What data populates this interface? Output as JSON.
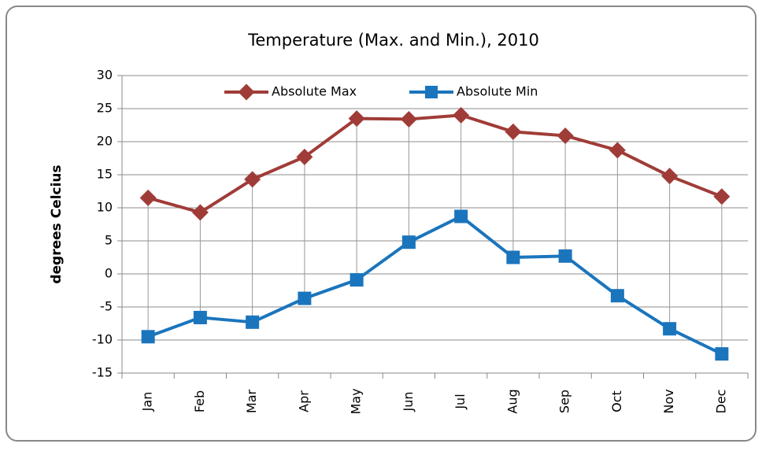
{
  "chart_data": {
    "type": "line",
    "title": "Temperature (Max. and Min.), 2010",
    "y_label": "degrees Celcius",
    "categories": [
      "Jan",
      "Feb",
      "Mar",
      "Apr",
      "May",
      "Jun",
      "Jul",
      "Aug",
      "Sep",
      "Oct",
      "Nov",
      "Dec"
    ],
    "series": [
      {
        "name": "Absolute Max",
        "color": "#a03c38",
        "marker": "diamond",
        "values": [
          11.5,
          9.3,
          14.3,
          17.7,
          23.5,
          23.4,
          24.0,
          21.5,
          20.9,
          18.7,
          14.8,
          11.7
        ]
      },
      {
        "name": "Absolute Min",
        "color": "#1a75bd",
        "marker": "square",
        "values": [
          -9.5,
          -6.6,
          -7.3,
          -3.7,
          -0.9,
          4.8,
          8.7,
          2.5,
          2.7,
          -3.3,
          -8.3,
          -12.1
        ]
      }
    ],
    "ylim": [
      -15,
      30
    ],
    "yticks": [
      -15,
      -10,
      -5,
      0,
      5,
      10,
      15,
      20,
      25,
      30
    ],
    "grid": true,
    "legend": "top",
    "high_low_lines": true
  }
}
